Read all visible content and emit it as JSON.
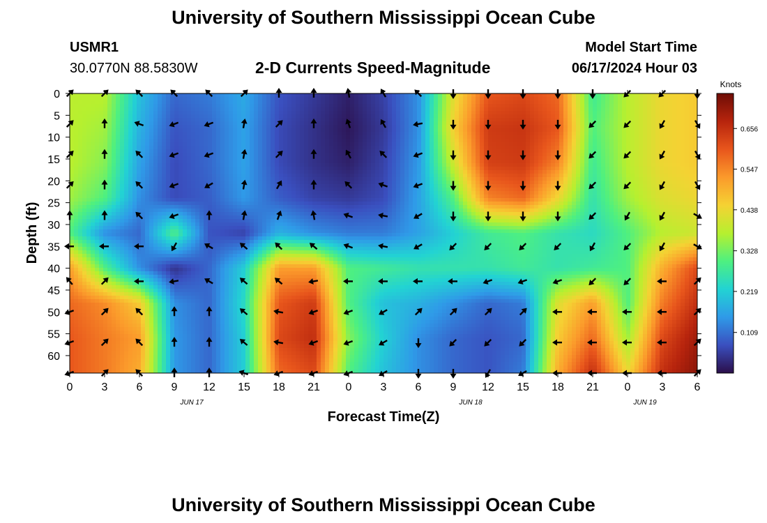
{
  "header": {
    "title": "University of Southern Mississippi Ocean Cube",
    "station_id": "USMR1",
    "station_coords": "30.0770N  88.5830W",
    "chart_subtitle": "2-D Currents Speed-Magnitude",
    "model_start_label": "Model Start Time",
    "model_start_value": "06/17/2024 Hour 03"
  },
  "footer": {
    "title": "University of Southern Mississippi Ocean Cube"
  },
  "chart_data": {
    "type": "heatmap",
    "title": "2-D Currents Speed-Magnitude",
    "xlabel": "Forecast Time(Z)",
    "ylabel": "Depth (ft)",
    "x_tick_labels": [
      "0",
      "3",
      "6",
      "9",
      "12",
      "15",
      "18",
      "21",
      "0",
      "3",
      "6",
      "9",
      "12",
      "15",
      "18",
      "21",
      "0",
      "3",
      "6"
    ],
    "x_day_labels": [
      {
        "label": "JUN 17",
        "at_tick": 3.5
      },
      {
        "label": "JUN 18",
        "at_tick": 11.5
      },
      {
        "label": "JUN 19",
        "at_tick": 16.5
      }
    ],
    "y_ticks": [
      0,
      5,
      10,
      15,
      20,
      25,
      30,
      35,
      40,
      45,
      50,
      55,
      60
    ],
    "ylim": [
      0,
      64
    ],
    "y_inverted": true,
    "colorbar": {
      "unit_label": "Knots",
      "tick_values": [
        "0.109",
        "0.219",
        "0.328",
        "0.438",
        "0.547",
        "0.656"
      ],
      "range": [
        0.0,
        0.75
      ],
      "colors": [
        "#2b0f4a",
        "#3a4fbf",
        "#2f9ae8",
        "#22d3d3",
        "#4ef080",
        "#b6f02f",
        "#f5d233",
        "#fb9a2b",
        "#e8561c",
        "#b7240d",
        "#6e0d06"
      ]
    },
    "speed_grid_knots": {
      "columns_every_3h": 19,
      "rows_depth_ft": [
        0,
        8,
        16,
        24,
        32,
        40,
        48,
        56,
        64
      ],
      "values": [
        [
          0.38,
          0.38,
          0.2,
          0.1,
          0.12,
          0.17,
          0.08,
          0.05,
          0.02,
          0.06,
          0.14,
          0.42,
          0.6,
          0.62,
          0.58,
          0.28,
          0.38,
          0.44,
          0.46
        ],
        [
          0.38,
          0.36,
          0.18,
          0.08,
          0.1,
          0.16,
          0.07,
          0.04,
          0.01,
          0.05,
          0.14,
          0.45,
          0.64,
          0.65,
          0.6,
          0.3,
          0.38,
          0.44,
          0.46
        ],
        [
          0.38,
          0.34,
          0.16,
          0.07,
          0.1,
          0.16,
          0.07,
          0.04,
          0.02,
          0.06,
          0.15,
          0.4,
          0.63,
          0.64,
          0.55,
          0.28,
          0.38,
          0.44,
          0.46
        ],
        [
          0.36,
          0.3,
          0.14,
          0.07,
          0.09,
          0.15,
          0.09,
          0.06,
          0.05,
          0.07,
          0.16,
          0.3,
          0.55,
          0.58,
          0.44,
          0.26,
          0.36,
          0.42,
          0.44
        ],
        [
          0.3,
          0.14,
          0.1,
          0.3,
          0.08,
          0.06,
          0.18,
          0.14,
          0.12,
          0.12,
          0.16,
          0.22,
          0.28,
          0.3,
          0.26,
          0.24,
          0.3,
          0.38,
          0.4
        ],
        [
          0.52,
          0.3,
          0.14,
          0.04,
          0.1,
          0.22,
          0.52,
          0.52,
          0.3,
          0.28,
          0.26,
          0.26,
          0.26,
          0.28,
          0.26,
          0.28,
          0.3,
          0.5,
          0.62
        ],
        [
          0.58,
          0.54,
          0.46,
          0.14,
          0.1,
          0.24,
          0.6,
          0.64,
          0.3,
          0.2,
          0.18,
          0.14,
          0.1,
          0.12,
          0.42,
          0.52,
          0.3,
          0.56,
          0.66
        ],
        [
          0.6,
          0.56,
          0.52,
          0.15,
          0.1,
          0.22,
          0.62,
          0.66,
          0.34,
          0.22,
          0.14,
          0.1,
          0.08,
          0.1,
          0.46,
          0.58,
          0.36,
          0.62,
          0.7
        ],
        [
          0.6,
          0.56,
          0.5,
          0.15,
          0.1,
          0.22,
          0.58,
          0.62,
          0.3,
          0.2,
          0.14,
          0.1,
          0.08,
          0.12,
          0.5,
          0.66,
          0.44,
          0.66,
          0.72
        ]
      ]
    },
    "vector_grid": {
      "columns_every_3h": 19,
      "rows_depth_ft": [
        0,
        7,
        14,
        21,
        28,
        35,
        43,
        50,
        57,
        64
      ],
      "directions_deg": [
        [
          45,
          45,
          135,
          135,
          135,
          45,
          90,
          90,
          100,
          120,
          135,
          270,
          270,
          270,
          270,
          270,
          225,
          225,
          270
        ],
        [
          45,
          90,
          160,
          200,
          200,
          80,
          45,
          90,
          110,
          120,
          190,
          270,
          270,
          270,
          270,
          225,
          225,
          240,
          300
        ],
        [
          45,
          90,
          135,
          200,
          200,
          80,
          45,
          90,
          120,
          135,
          200,
          270,
          270,
          270,
          270,
          225,
          225,
          240,
          300
        ],
        [
          45,
          90,
          135,
          200,
          210,
          80,
          60,
          90,
          135,
          160,
          200,
          270,
          270,
          270,
          270,
          225,
          225,
          240,
          300
        ],
        [
          90,
          90,
          135,
          200,
          90,
          80,
          70,
          100,
          160,
          170,
          210,
          270,
          270,
          270,
          270,
          225,
          240,
          240,
          330
        ],
        [
          180,
          180,
          180,
          240,
          150,
          140,
          135,
          140,
          160,
          170,
          210,
          225,
          225,
          225,
          225,
          240,
          225,
          240,
          330
        ],
        [
          130,
          45,
          180,
          190,
          150,
          140,
          140,
          190,
          180,
          180,
          180,
          180,
          200,
          200,
          200,
          225,
          225,
          180,
          45
        ],
        [
          200,
          45,
          135,
          90,
          90,
          140,
          170,
          200,
          200,
          210,
          45,
          45,
          45,
          45,
          180,
          180,
          180,
          180,
          45
        ],
        [
          200,
          45,
          135,
          90,
          90,
          140,
          170,
          200,
          200,
          210,
          270,
          225,
          225,
          225,
          180,
          180,
          180,
          180,
          45
        ],
        [
          200,
          45,
          135,
          90,
          90,
          160,
          200,
          200,
          200,
          210,
          270,
          270,
          240,
          210,
          180,
          180,
          180,
          180,
          45
        ]
      ]
    }
  }
}
